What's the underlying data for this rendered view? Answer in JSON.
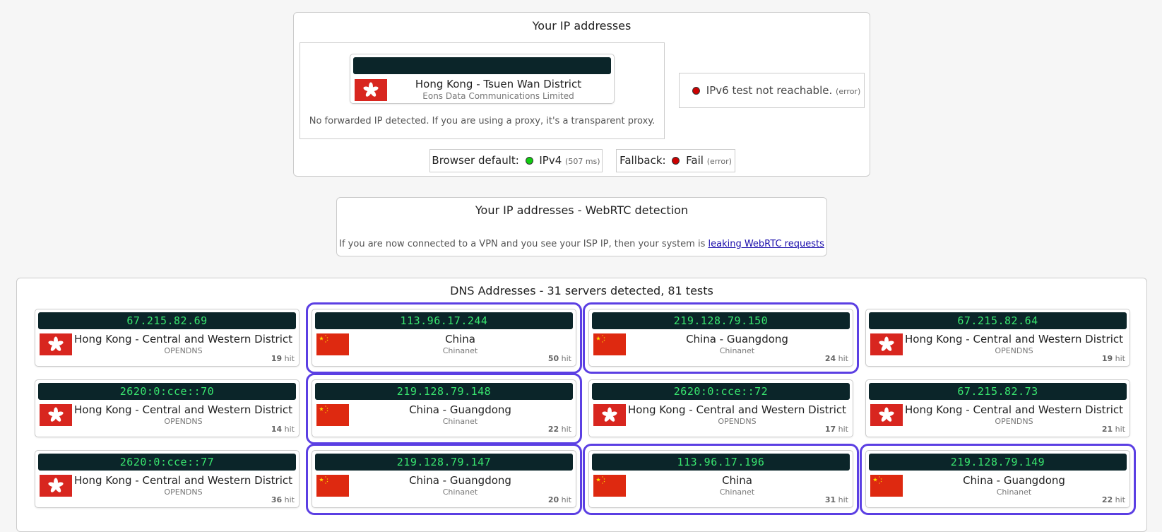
{
  "ip_panel": {
    "title": "Your IP addresses",
    "location": "Hong Kong - Tsuen Wan District",
    "isp": "Eons Data Communications Limited",
    "forwarded_note": "No forwarded IP detected. If you are using a proxy, it's a transparent proxy.",
    "ipv6": {
      "text": "IPv6 test not reachable.",
      "status": "(error)"
    },
    "browser_default": {
      "label": "Browser default:",
      "protocol": "IPv4",
      "time": "(507 ms)"
    },
    "fallback": {
      "label": "Fallback:",
      "result": "Fail",
      "status": "(error)"
    }
  },
  "webrtc": {
    "title": "Your IP addresses - WebRTC detection",
    "note": "If you are now connected to a VPN and you see your ISP IP, then your system is",
    "link": "leaking WebRTC requests"
  },
  "dns": {
    "title": "DNS Addresses - 31 servers detected, 81 tests",
    "hit_unit": "hit",
    "servers": [
      {
        "ip": "67.215.82.69",
        "location": "Hong Kong - Central and Western District",
        "isp": "OPENDNS",
        "hits": 19,
        "flag": "hk",
        "highlighted": false
      },
      {
        "ip": "113.96.17.244",
        "location": "China",
        "isp": "Chinanet",
        "hits": 50,
        "flag": "cn",
        "highlighted": true
      },
      {
        "ip": "219.128.79.150",
        "location": "China - Guangdong",
        "isp": "Chinanet",
        "hits": 24,
        "flag": "cn",
        "highlighted": true
      },
      {
        "ip": "67.215.82.64",
        "location": "Hong Kong - Central and Western District",
        "isp": "OPENDNS",
        "hits": 19,
        "flag": "hk",
        "highlighted": false
      },
      {
        "ip": "2620:0:cce::70",
        "location": "Hong Kong - Central and Western District",
        "isp": "OPENDNS",
        "hits": 14,
        "flag": "hk",
        "highlighted": false
      },
      {
        "ip": "219.128.79.148",
        "location": "China - Guangdong",
        "isp": "Chinanet",
        "hits": 22,
        "flag": "cn",
        "highlighted": true
      },
      {
        "ip": "2620:0:cce::72",
        "location": "Hong Kong - Central and Western District",
        "isp": "OPENDNS",
        "hits": 17,
        "flag": "hk",
        "highlighted": false
      },
      {
        "ip": "67.215.82.73",
        "location": "Hong Kong - Central and Western District",
        "isp": "OPENDNS",
        "hits": 21,
        "flag": "hk",
        "highlighted": false
      },
      {
        "ip": "2620:0:cce::77",
        "location": "Hong Kong - Central and Western District",
        "isp": "OPENDNS",
        "hits": 36,
        "flag": "hk",
        "highlighted": false
      },
      {
        "ip": "219.128.79.147",
        "location": "China - Guangdong",
        "isp": "Chinanet",
        "hits": 20,
        "flag": "cn",
        "highlighted": true
      },
      {
        "ip": "113.96.17.196",
        "location": "China",
        "isp": "Chinanet",
        "hits": 31,
        "flag": "cn",
        "highlighted": true
      },
      {
        "ip": "219.128.79.149",
        "location": "China - Guangdong",
        "isp": "Chinanet",
        "hits": 22,
        "flag": "cn",
        "highlighted": true
      }
    ]
  }
}
